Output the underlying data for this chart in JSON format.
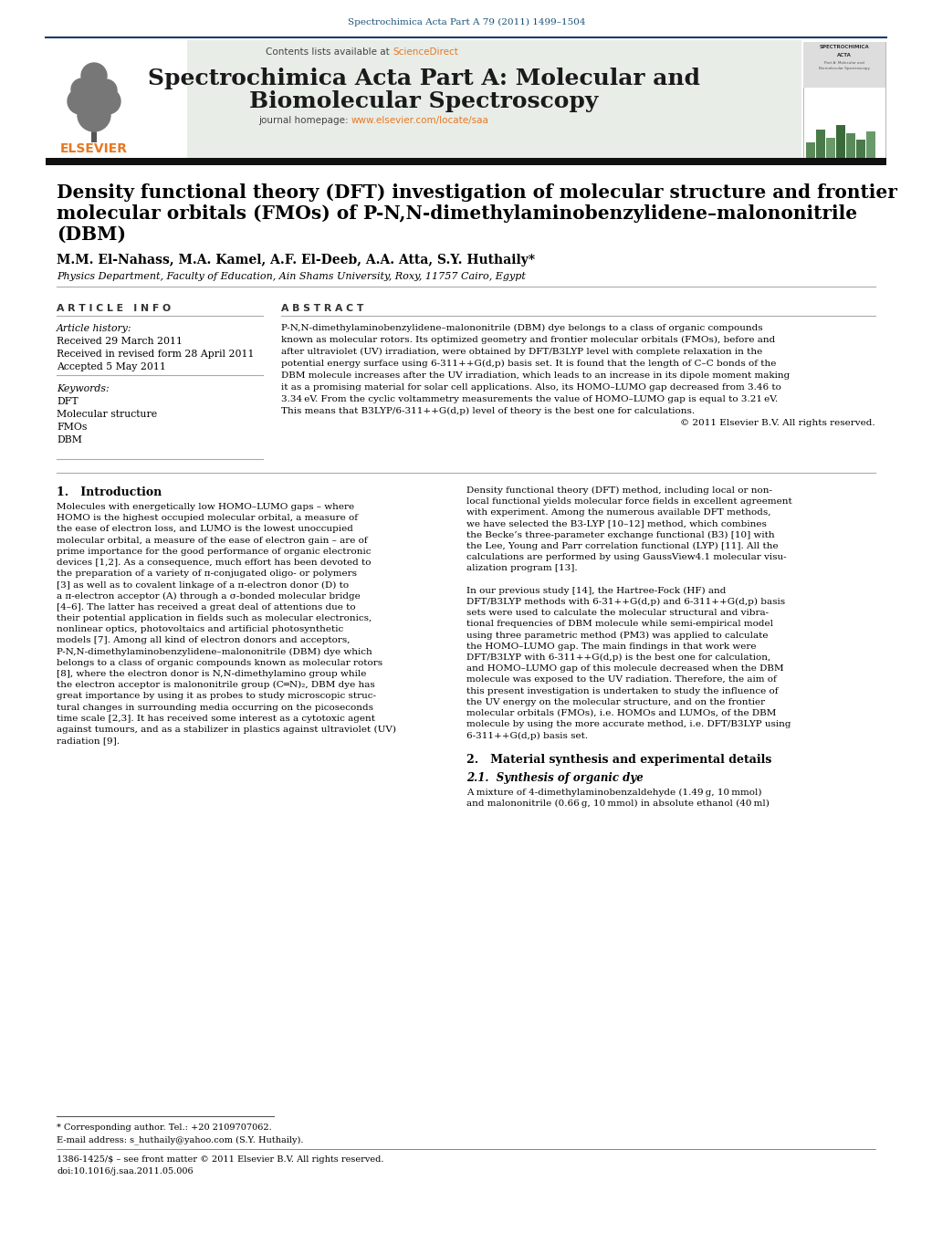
{
  "page_bg": "#ffffff",
  "top_citation": "Spectrochimica Acta Part A 79 (2011) 1499–1504",
  "top_citation_color": "#1a5276",
  "journal_name_line1": "Spectrochimica Acta Part A: Molecular and",
  "journal_name_line2": "Biomolecular Spectroscopy",
  "journal_name_color": "#1a1a1a",
  "contents_text": "Contents lists available at ",
  "sciencedirect_text": "ScienceDirect",
  "sciencedirect_color": "#e87722",
  "journal_homepage_text": "journal homepage: ",
  "journal_url": "www.elsevier.com/locate/saa",
  "journal_url_color": "#e87722",
  "header_bg": "#e8ede8",
  "black_bar_color": "#1a1a1a",
  "article_title_line1": "Density functional theory (DFT) investigation of molecular structure and frontier",
  "article_title_line2": "molecular orbitals (FMOs) of P-N,N-dimethylaminobenzylidene–malononitrile",
  "article_title_line3": "(DBM)",
  "article_title_color": "#000000",
  "authors": "M.M. El-Nahass, M.A. Kamel, A.F. El-Deeb, A.A. Atta, S.Y. Huthaily*",
  "authors_color": "#000000",
  "affiliation": "Physics Department, Faculty of Education, Ain Shams University, Roxy, 11757 Cairo, Egypt",
  "affiliation_color": "#000000",
  "article_info_header": "A R T I C L E   I N F O",
  "article_history_label": "Article history:",
  "received": "Received 29 March 2011",
  "received_revised": "Received in revised form 28 April 2011",
  "accepted": "Accepted 5 May 2011",
  "keywords_label": "Keywords:",
  "keyword1": "DFT",
  "keyword2": "Molecular structure",
  "keyword3": "FMOs",
  "keyword4": "DBM",
  "abstract_header": "A B S T R A C T",
  "copyright": "© 2011 Elsevier B.V. All rights reserved.",
  "section1_title": "1.   Introduction",
  "section2_title": "2.   Material synthesis and experimental details",
  "section21_title": "2.1.  Synthesis of organic dye",
  "footnote_star": "* Corresponding author. Tel.: +20 2109707062.",
  "footnote_email": "E-mail address: s_huthaily@yahoo.com (S.Y. Huthaily).",
  "footnote_issn": "1386-1425/$ – see front matter © 2011 Elsevier B.V. All rights reserved.",
  "footnote_doi": "doi:10.1016/j.saa.2011.05.006",
  "abstract_lines": [
    "P-N,N-dimethylaminobenzylidene–malononitrile (DBM) dye belongs to a class of organic compounds",
    "known as molecular rotors. Its optimized geometry and frontier molecular orbitals (FMOs), before and",
    "after ultraviolet (UV) irradiation, were obtained by DFT/B3LYP level with complete relaxation in the",
    "potential energy surface using 6-311++G(d,p) basis set. It is found that the length of C–C bonds of the",
    "DBM molecule increases after the UV irradiation, which leads to an increase in its dipole moment making",
    "it as a promising material for solar cell applications. Also, its HOMO–LUMO gap decreased from 3.46 to",
    "3.34 eV. From the cyclic voltammetry measurements the value of HOMO–LUMO gap is equal to 3.21 eV.",
    "This means that B3LYP/6-311++G(d,p) level of theory is the best one for calculations."
  ],
  "left_body_lines": [
    "Molecules with energetically low HOMO–LUMO gaps – where",
    "HOMO is the highest occupied molecular orbital, a measure of",
    "the ease of electron loss, and LUMO is the lowest unoccupied",
    "molecular orbital, a measure of the ease of electron gain – are of",
    "prime importance for the good performance of organic electronic",
    "devices [1,2]. As a consequence, much effort has been devoted to",
    "the preparation of a variety of π-conjugated oligo- or polymers",
    "[3] as well as to covalent linkage of a π-electron donor (D) to",
    "a π-electron acceptor (A) through a σ-bonded molecular bridge",
    "[4–6]. The latter has received a great deal of attentions due to",
    "their potential application in fields such as molecular electronics,",
    "nonlinear optics, photovoltaics and artificial photosynthetic",
    "models [7]. Among all kind of electron donors and acceptors,",
    "P-N,N-dimethylaminobenzylidene–malononitrile (DBM) dye which",
    "belongs to a class of organic compounds known as molecular rotors",
    "[8], where the electron donor is N,N-dimethylamino group while",
    "the electron acceptor is malononitrile group (C═N)₂, DBM dye has",
    "great importance by using it as probes to study microscopic struc-",
    "tural changes in surrounding media occurring on the picoseconds",
    "time scale [2,3]. It has received some interest as a cytotoxic agent",
    "against tumours, and as a stabilizer in plastics against ultraviolet (UV)",
    "radiation [9]."
  ],
  "right_body_lines": [
    "Density functional theory (DFT) method, including local or non-",
    "local functional yields molecular force fields in excellent agreement",
    "with experiment. Among the numerous available DFT methods,",
    "we have selected the B3-LYP [10–12] method, which combines",
    "the Becke’s three-parameter exchange functional (B3) [10] with",
    "the Lee, Young and Parr correlation functional (LYP) [11]. All the",
    "calculations are performed by using GaussView4.1 molecular visu-",
    "alization program [13].",
    "",
    "In our previous study [14], the Hartree-Fock (HF) and",
    "DFT/B3LYP methods with 6-31++G(d,p) and 6-311++G(d,p) basis",
    "sets were used to calculate the molecular structural and vibra-",
    "tional frequencies of DBM molecule while semi-empirical model",
    "using three parametric method (PM3) was applied to calculate",
    "the HOMO–LUMO gap. The main findings in that work were",
    "DFT/B3LYP with 6-311++G(d,p) is the best one for calculation,",
    "and HOMO–LUMO gap of this molecule decreased when the DBM",
    "molecule was exposed to the UV radiation. Therefore, the aim of",
    "this present investigation is undertaken to study the influence of",
    "the UV energy on the molecular structure, and on the frontier",
    "molecular orbitals (FMOs), i.e. HOMOs and LUMOs, of the DBM",
    "molecule by using the more accurate method, i.e. DFT/B3LYP using",
    "6-311++G(d,p) basis set."
  ],
  "section21_text_lines": [
    "A mixture of 4-dimethylaminobenzaldehyde (1.49 g, 10 mmol)",
    "and malononitrile (0.66 g, 10 mmol) in absolute ethanol (40 ml)"
  ]
}
